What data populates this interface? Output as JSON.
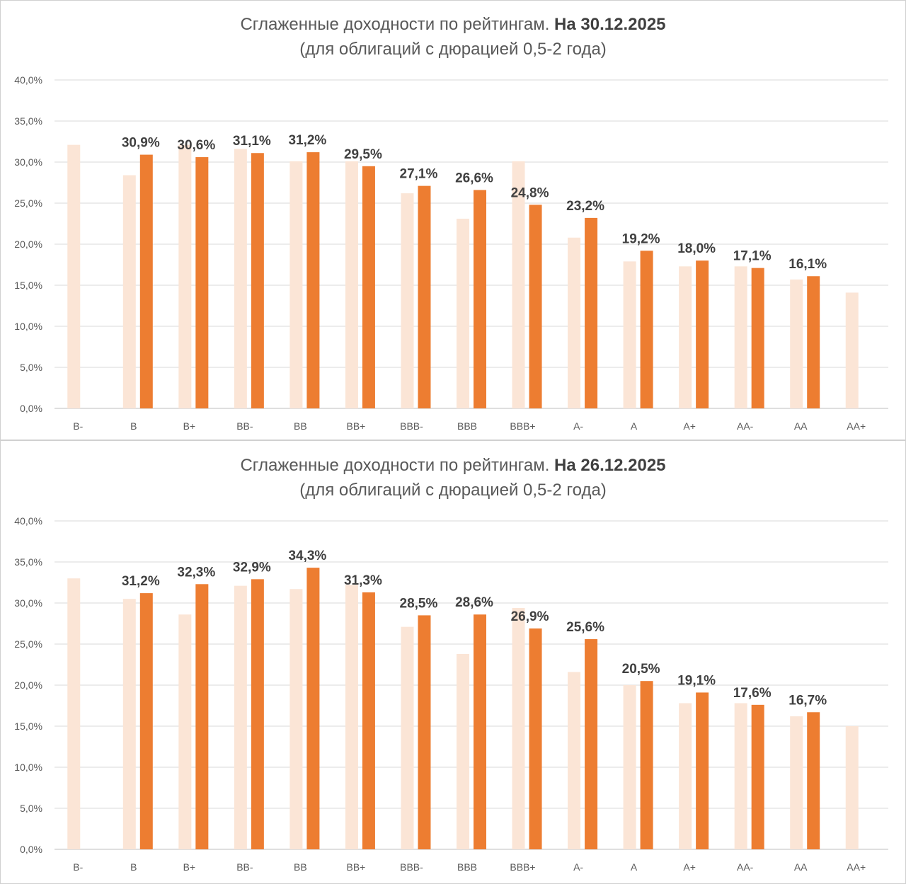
{
  "chart_data": [
    {
      "type": "bar",
      "title": "Сглаженные доходности по рейтингам.",
      "title_date": "На 30.12.2025",
      "subtitle": "(для облигаций с дюрацией 0,5-2 года)",
      "categories": [
        "B-",
        "B",
        "B+",
        "BB-",
        "BB",
        "BB+",
        "BBB-",
        "BBB",
        "BBB+",
        "A-",
        "A",
        "A+",
        "AA-",
        "AA",
        "AA+"
      ],
      "ylim": [
        0,
        40
      ],
      "yticks": [
        "0,0%",
        "5,0%",
        "10,0%",
        "15,0%",
        "20,0%",
        "25,0%",
        "30,0%",
        "35,0%",
        "40,0%"
      ],
      "grid": true,
      "series": [
        {
          "color": "#fbe5d6",
          "values": [
            32.1,
            28.4,
            32.1,
            31.6,
            30.1,
            30.1,
            26.2,
            23.1,
            30.1,
            20.8,
            17.9,
            17.3,
            17.3,
            15.7,
            14.1
          ]
        },
        {
          "color": "#ed7d31",
          "values": [
            null,
            30.9,
            30.6,
            31.1,
            31.2,
            29.5,
            27.1,
            26.6,
            24.8,
            23.2,
            19.2,
            18.0,
            17.1,
            16.1,
            null
          ],
          "labels": [
            "",
            "30,9%",
            "30,6%",
            "31,1%",
            "31,2%",
            "29,5%",
            "27,1%",
            "26,6%",
            "24,8%",
            "23,2%",
            "19,2%",
            "18,0%",
            "17,1%",
            "16,1%",
            ""
          ]
        }
      ]
    },
    {
      "type": "bar",
      "title": "Сглаженные доходности по рейтингам.",
      "title_date": "На 26.12.2025",
      "subtitle": "(для облигаций с дюрацией 0,5-2 года)",
      "categories": [
        "B-",
        "B",
        "B+",
        "BB-",
        "BB",
        "BB+",
        "BBB-",
        "BBB",
        "BBB+",
        "A-",
        "A",
        "A+",
        "AA-",
        "AA",
        "AA+"
      ],
      "ylim": [
        0,
        40
      ],
      "yticks": [
        "0,0%",
        "5,0%",
        "10,0%",
        "15,0%",
        "20,0%",
        "25,0%",
        "30,0%",
        "35,0%",
        "40,0%"
      ],
      "grid": true,
      "series": [
        {
          "color": "#fbe5d6",
          "values": [
            33.0,
            30.5,
            28.6,
            32.1,
            31.7,
            32.2,
            27.1,
            23.8,
            29.4,
            21.6,
            20.0,
            17.8,
            17.8,
            16.2,
            15.0
          ]
        },
        {
          "color": "#ed7d31",
          "values": [
            null,
            31.2,
            32.3,
            32.9,
            34.3,
            31.3,
            28.5,
            28.6,
            26.9,
            25.6,
            20.5,
            19.1,
            17.6,
            16.7,
            null
          ],
          "labels": [
            "",
            "31,2%",
            "32,3%",
            "32,9%",
            "34,3%",
            "31,3%",
            "28,5%",
            "28,6%",
            "26,9%",
            "25,6%",
            "20,5%",
            "19,1%",
            "17,6%",
            "16,7%",
            ""
          ]
        }
      ]
    }
  ]
}
